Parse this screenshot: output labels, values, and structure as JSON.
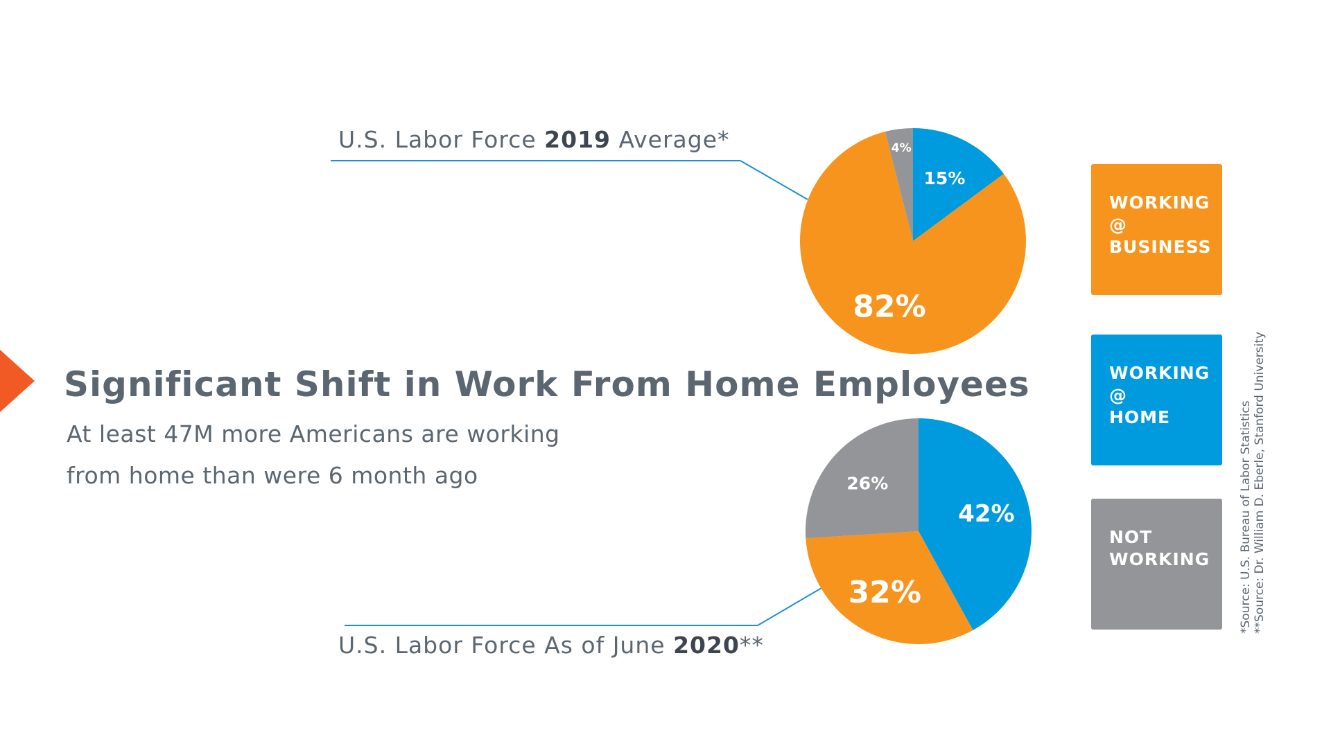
{
  "title": "Significant Shift in Work From Home Employees",
  "subtitle_line1": "At least 47M more Americans are working",
  "subtitle_line2": "from home than were 6 month ago",
  "captions": {
    "top_pre": "U.S. Labor Force ",
    "top_bold": "2019",
    "top_post": " Average*",
    "bottom_pre": "U.S. Labor Force As of June ",
    "bottom_bold": "2020",
    "bottom_post": "**"
  },
  "legend": [
    {
      "line1": "WORKING",
      "line2": "@",
      "line3": "BUSINESS",
      "color": "#f7941d"
    },
    {
      "line1": "WORKING",
      "line2": "@",
      "line3": "HOME",
      "color": "#009ade"
    },
    {
      "line1": "NOT",
      "line2": "WORKING",
      "line3": "",
      "color": "#939598"
    }
  ],
  "sources": {
    "line1": "*Source: U.S. Bureau of Labor Statistics",
    "line2": "**Source: Dr. William D. Eberle, Stanford University"
  },
  "colors": {
    "business": "#f7941d",
    "home": "#009ade",
    "not_working": "#939598",
    "accent": "#f15a24",
    "text": "#5b6670",
    "leader_line": "#1a8fd6"
  },
  "chart_data": [
    {
      "type": "pie",
      "categories": [
        "WORKING @ HOME",
        "WORKING @ BUSINESS",
        "NOT WORKING"
      ],
      "values": [
        15,
        82,
        4
      ],
      "labels": [
        "15%",
        "82%",
        "4%"
      ]
    },
    {
      "type": "pie",
      "categories": [
        "WORKING @ HOME",
        "WORKING @ BUSINESS",
        "NOT WORKING"
      ],
      "values": [
        42,
        32,
        26
      ],
      "labels": [
        "42%",
        "32%",
        "26%"
      ]
    }
  ]
}
